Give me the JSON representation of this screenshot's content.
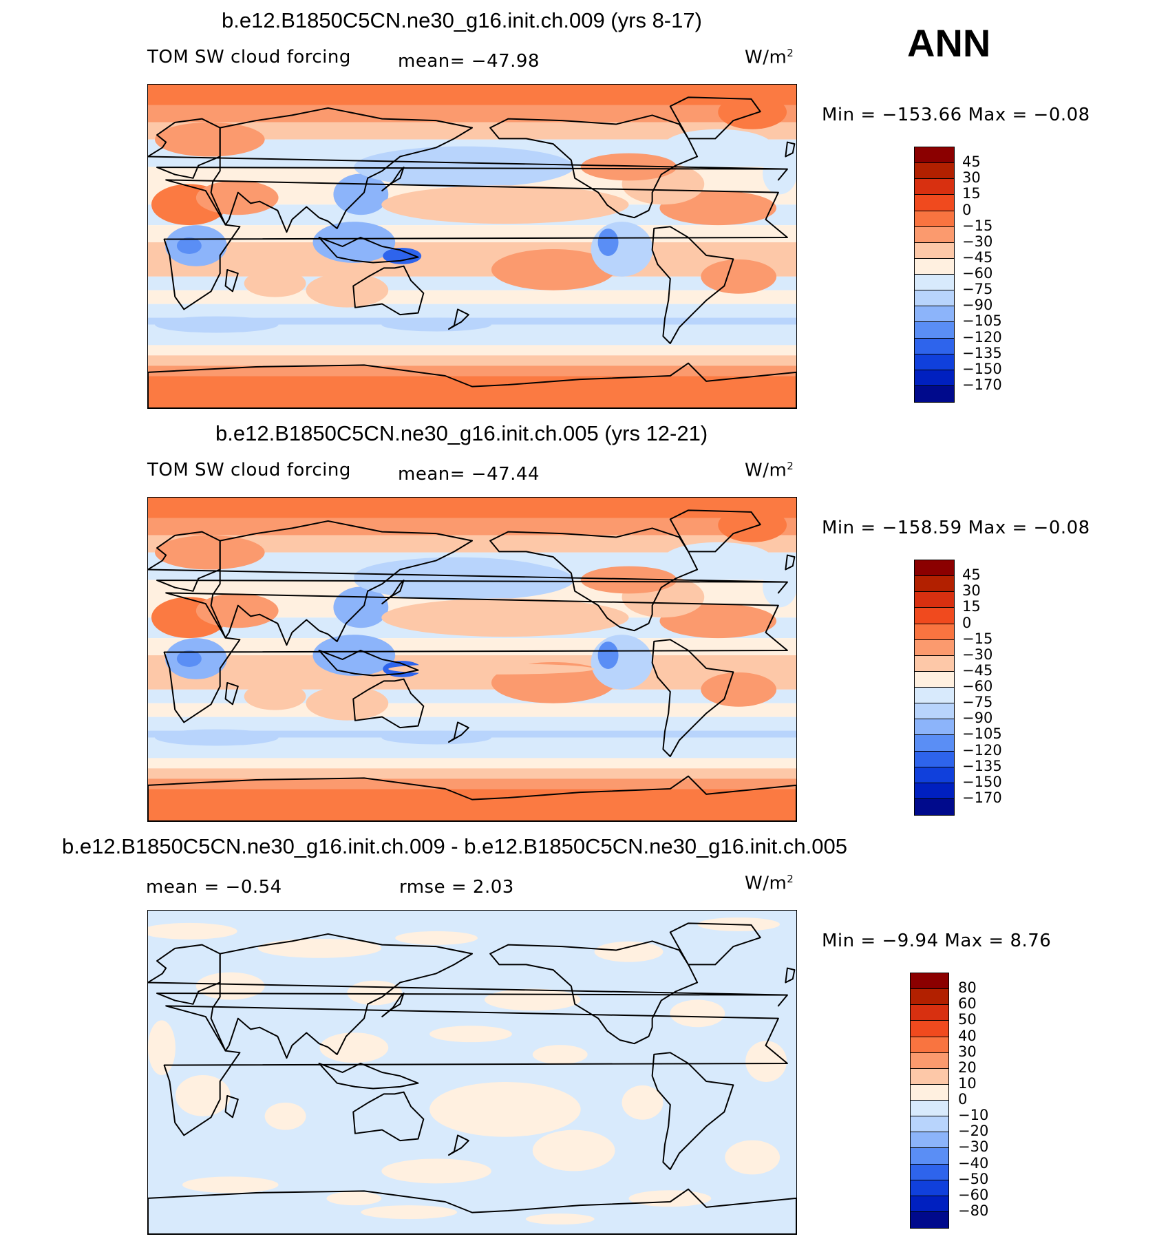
{
  "season": "ANN",
  "units_base": "W/m",
  "units_exp": "2",
  "panels": [
    {
      "title": "b.e12.B1850C5CN.ne30_g16.init.ch.009 (yrs 8-17)",
      "variable": "TOM SW cloud forcing",
      "stat1": "mean= −47.98",
      "minmax": "Min = −153.66 Max =   −0.08"
    },
    {
      "title": "b.e12.B1850C5CN.ne30_g16.init.ch.005 (yrs 12-21)",
      "variable": "TOM SW cloud forcing",
      "stat1": "mean= −47.44",
      "minmax": "Min = −158.59 Max =   −0.08"
    },
    {
      "title": "b.e12.B1850C5CN.ne30_g16.init.ch.009 - b.e12.B1850C5CN.ne30_g16.init.ch.005",
      "stat1": "mean =   −0.54",
      "stat2": "rmse =    2.03",
      "minmax": "Min =   −9.94 Max =    8.76"
    }
  ],
  "colorbar_main": {
    "colors": [
      "#8b0000",
      "#b22000",
      "#d83010",
      "#f04a1e",
      "#f97440",
      "#fb9a6e",
      "#fdc8a8",
      "#fff0e0",
      "#d8eafc",
      "#b8d4fc",
      "#8cb4fa",
      "#5a8ef5",
      "#2e64ec",
      "#1040dc",
      "#0020c0",
      "#000a8c"
    ],
    "labels": [
      "45",
      "30",
      "15",
      "0",
      "−15",
      "−30",
      "−45",
      "−60",
      "−75",
      "−90",
      "−105",
      "−120",
      "−135",
      "−150",
      "−170"
    ]
  },
  "colorbar_diff": {
    "colors": [
      "#8b0000",
      "#b22000",
      "#d83010",
      "#f04a1e",
      "#f97440",
      "#fb9a6e",
      "#fdc8a8",
      "#fff0e0",
      "#d8eafc",
      "#b8d4fc",
      "#8cb4fa",
      "#5a8ef5",
      "#2e64ec",
      "#1040dc",
      "#0020c0",
      "#000a8c"
    ],
    "labels": [
      "80",
      "60",
      "50",
      "40",
      "30",
      "20",
      "10",
      "0",
      "−10",
      "−20",
      "−30",
      "−40",
      "−50",
      "−60",
      "−80"
    ]
  },
  "map_colors": {
    "orange": "#fb7a42",
    "salmon": "#fb9a6e",
    "peach": "#fdc8a8",
    "cream": "#fff0e0",
    "lightblue": "#d8eafc",
    "blue1": "#b8d4fc",
    "blue2": "#8cb4fa",
    "blue3": "#5a8ef5",
    "blue4": "#2e64ec"
  }
}
